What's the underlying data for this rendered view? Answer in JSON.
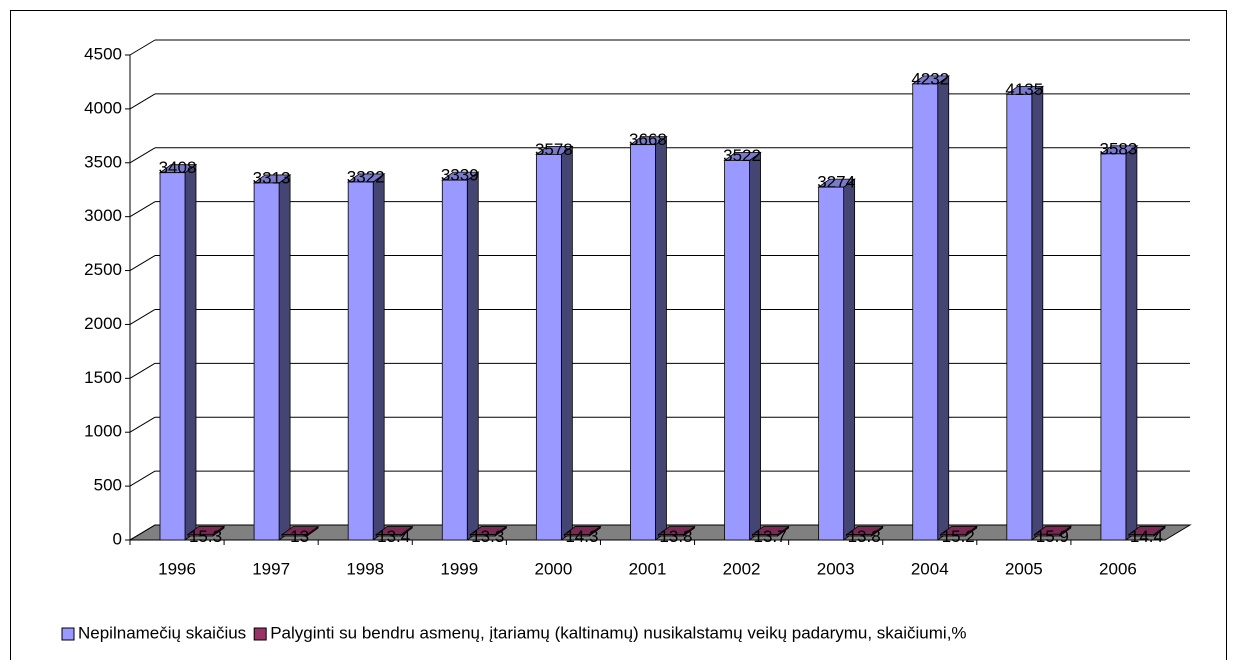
{
  "chart_data": {
    "type": "bar3d",
    "categories": [
      "1996",
      "1997",
      "1998",
      "1999",
      "2000",
      "2001",
      "2002",
      "2003",
      "2004",
      "2005",
      "2006"
    ],
    "series": [
      {
        "name": "Nepilnamečių skaičius",
        "color": "#9999ff",
        "values": [
          3408,
          3313,
          3322,
          3339,
          3578,
          3668,
          3522,
          3274,
          4232,
          4135,
          3583
        ]
      },
      {
        "name": "Palyginti su bendru asmenų, įtariamų (kaltinamų) nusikalstamų veikų padarymu, skaičiumi,%",
        "color": "#993366",
        "values": [
          15.3,
          13,
          13.4,
          13.3,
          14.3,
          13.8,
          13.7,
          13.8,
          15.2,
          15.9,
          14.4
        ]
      }
    ],
    "ylim": [
      0,
      4500
    ],
    "yticks": [
      0,
      500,
      1000,
      1500,
      2000,
      2500,
      3000,
      3500,
      4000,
      4500
    ],
    "grid": true,
    "legend": "bottom"
  }
}
